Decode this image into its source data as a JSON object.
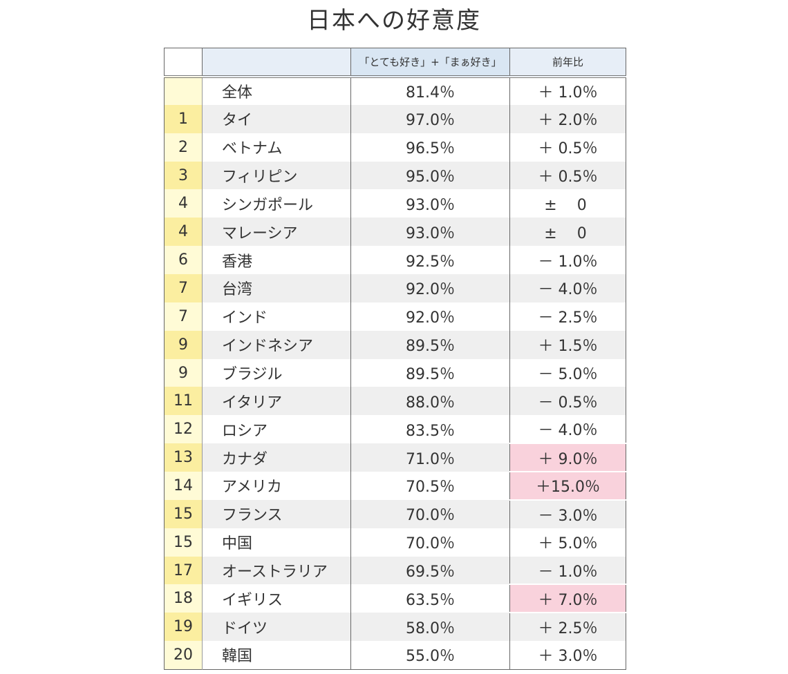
{
  "chart_data": {
    "type": "table",
    "title": "日本への好意度",
    "columns": [
      "",
      "",
      "「とても好き」+「まぁ好き」",
      "前年比"
    ],
    "highlight_color": "#f9d2dc",
    "rows": [
      {
        "rank": "",
        "name": "全体",
        "value": "81.4％",
        "change": "＋ 1.0％",
        "highlight": false
      },
      {
        "rank": "1",
        "name": "タイ",
        "value": "97.0％",
        "change": "＋ 2.0％",
        "highlight": false
      },
      {
        "rank": "2",
        "name": "ベトナム",
        "value": "96.5％",
        "change": "＋ 0.5％",
        "highlight": false
      },
      {
        "rank": "3",
        "name": "フィリピン",
        "value": "95.0％",
        "change": "＋ 0.5％",
        "highlight": false
      },
      {
        "rank": "4",
        "name": "シンガポール",
        "value": "93.0％",
        "change": "±　 0 ",
        "highlight": false
      },
      {
        "rank": "4",
        "name": "マレーシア",
        "value": "93.0％",
        "change": "±　 0 ",
        "highlight": false
      },
      {
        "rank": "6",
        "name": "香港",
        "value": "92.5％",
        "change": "－ 1.0％",
        "highlight": false
      },
      {
        "rank": "7",
        "name": "台湾",
        "value": "92.0％",
        "change": "－ 4.0％",
        "highlight": false
      },
      {
        "rank": "7",
        "name": "インド",
        "value": "92.0％",
        "change": "－ 2.5％",
        "highlight": false
      },
      {
        "rank": "9",
        "name": "インドネシア",
        "value": "89.5％",
        "change": "＋ 1.5％",
        "highlight": false
      },
      {
        "rank": "9",
        "name": "ブラジル",
        "value": "89.5％",
        "change": "－ 5.0％",
        "highlight": false
      },
      {
        "rank": "11",
        "name": "イタリア",
        "value": "88.0％",
        "change": "－ 0.5％",
        "highlight": false
      },
      {
        "rank": "12",
        "name": "ロシア",
        "value": "83.5％",
        "change": "－ 4.0％",
        "highlight": false
      },
      {
        "rank": "13",
        "name": "カナダ",
        "value": "71.0％",
        "change": "＋ 9.0％",
        "highlight": true
      },
      {
        "rank": "14",
        "name": "アメリカ",
        "value": "70.5％",
        "change": "＋15.0％",
        "highlight": true
      },
      {
        "rank": "15",
        "name": "フランス",
        "value": "70.0％",
        "change": "－ 3.0％",
        "highlight": false
      },
      {
        "rank": "15",
        "name": "中国",
        "value": "70.0％",
        "change": "＋ 5.0％",
        "highlight": false
      },
      {
        "rank": "17",
        "name": "オーストラリア",
        "value": "69.5％",
        "change": "－ 1.0％",
        "highlight": false
      },
      {
        "rank": "18",
        "name": "イギリス",
        "value": "63.5％",
        "change": "＋ 7.0％",
        "highlight": true
      },
      {
        "rank": "19",
        "name": "ドイツ",
        "value": "58.0％",
        "change": "＋ 2.5％",
        "highlight": false
      },
      {
        "rank": "20",
        "name": "韓国",
        "value": "55.0％",
        "change": "＋ 3.0％",
        "highlight": false
      }
    ]
  }
}
